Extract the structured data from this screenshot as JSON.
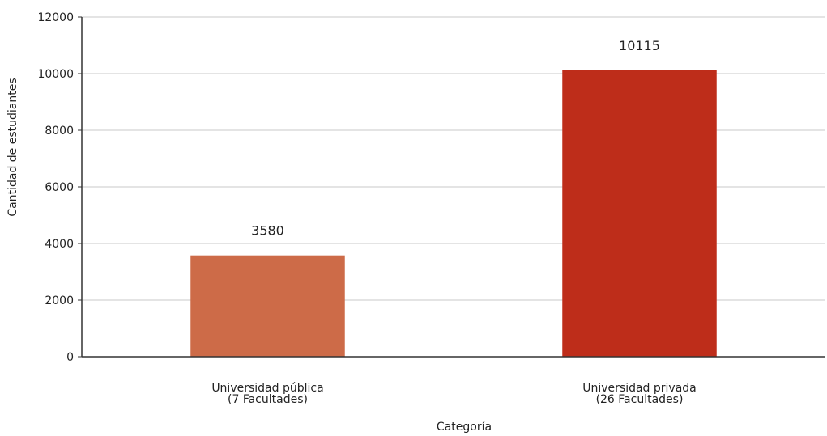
{
  "chart_data": {
    "type": "bar",
    "categories": [
      [
        "Universidad pública",
        "(7 Facultades)"
      ],
      [
        "Universidad privada",
        "(26 Facultades)"
      ]
    ],
    "values": [
      3580,
      10115
    ],
    "colors": [
      "#cd6b48",
      "#be2d1a"
    ],
    "title": "",
    "xlabel": "Categoría",
    "ylabel": "Cantidad de estudiantes",
    "ylim": [
      0,
      12000
    ],
    "yticks": [
      0,
      2000,
      4000,
      6000,
      8000,
      10000,
      12000
    ],
    "grid": true,
    "legend": "none"
  }
}
